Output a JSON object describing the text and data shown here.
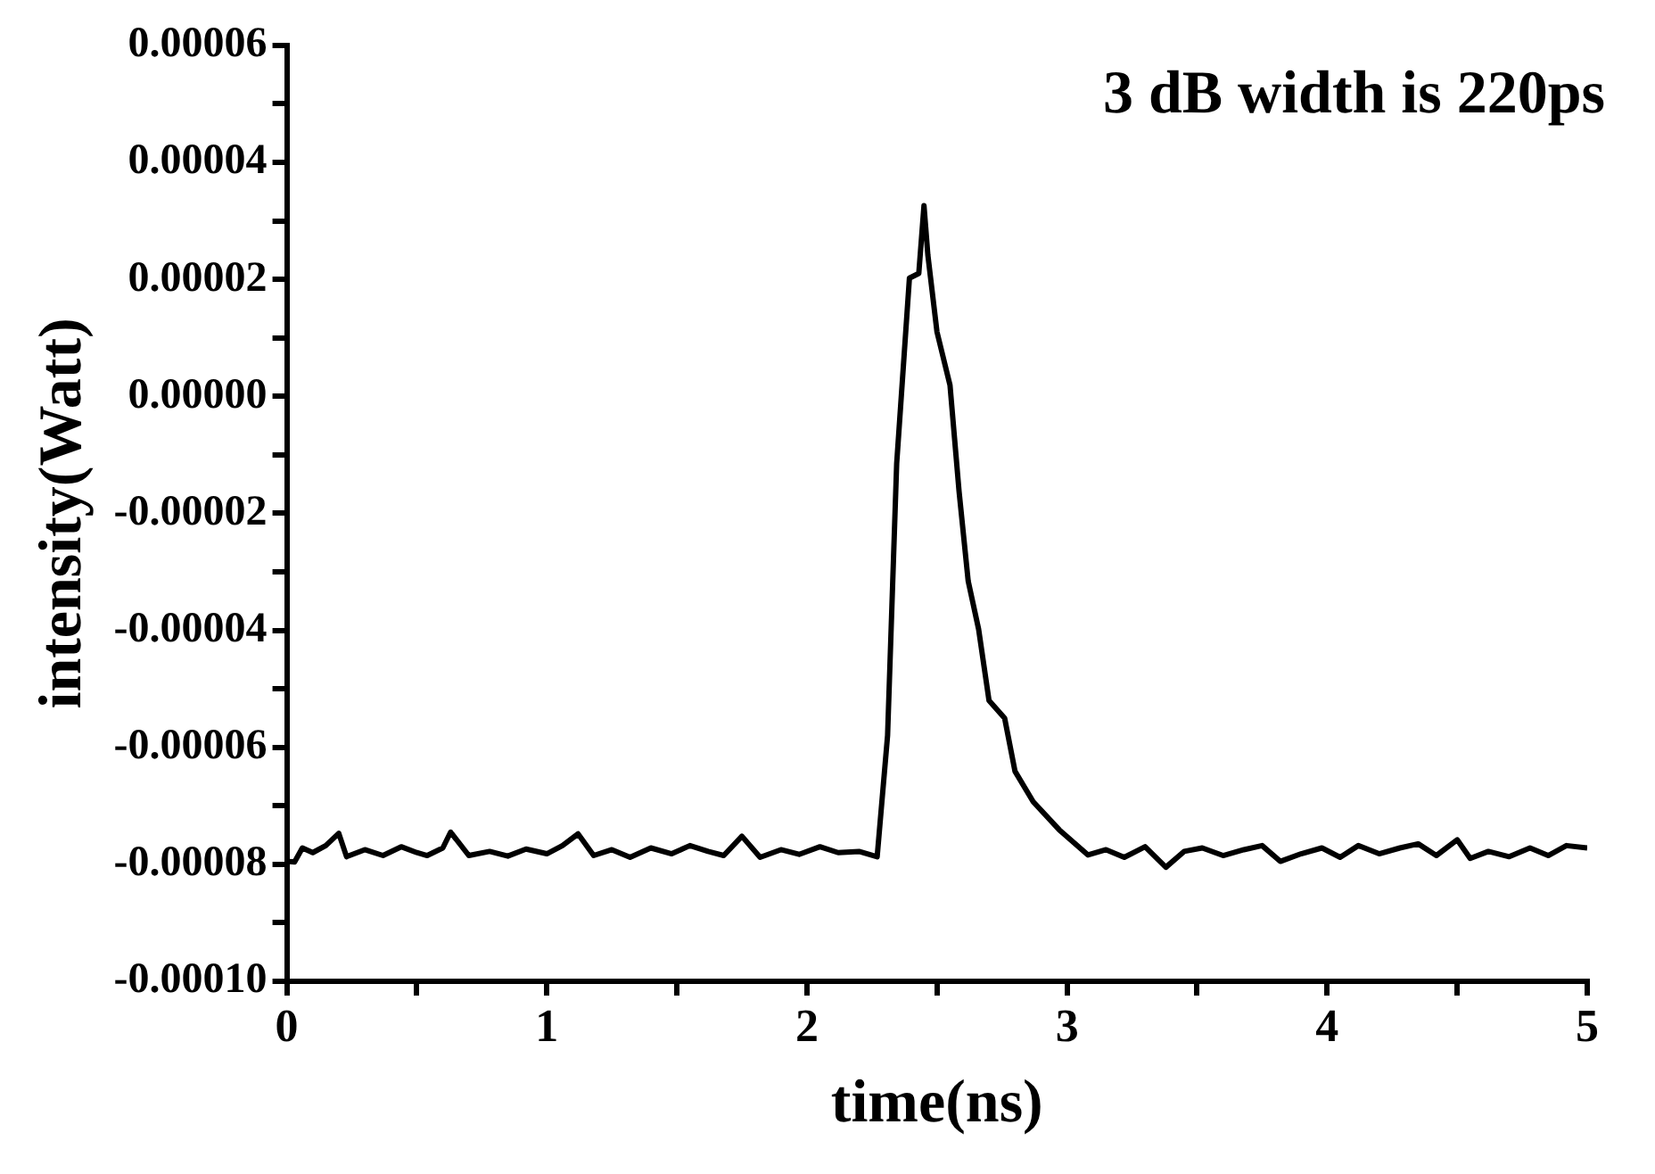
{
  "chart_data": {
    "type": "line",
    "xlabel": "time(ns)",
    "ylabel": "intensity(Watt)",
    "annotations": [
      "3 dB width is 220ps"
    ],
    "xlim": [
      0,
      5
    ],
    "ylim": [
      -0.0001,
      6e-05
    ],
    "xticks": [
      0,
      {
        "value": 0.5,
        "label": null
      },
      1,
      {
        "value": 1.5,
        "label": null
      },
      2,
      {
        "value": 2.5,
        "label": null
      },
      3,
      {
        "value": 3.5,
        "label": null
      },
      4,
      {
        "value": 4.5,
        "label": null
      },
      5
    ],
    "yticks": [
      {
        "value": -0.0001,
        "label": "-0.00010"
      },
      {
        "value": -9e-05,
        "label": null
      },
      {
        "value": -8e-05,
        "label": "-0.00008"
      },
      {
        "value": -7e-05,
        "label": null
      },
      {
        "value": -6e-05,
        "label": "-0.00006"
      },
      {
        "value": -5e-05,
        "label": null
      },
      {
        "value": -4e-05,
        "label": "-0.00004"
      },
      {
        "value": -3e-05,
        "label": null
      },
      {
        "value": -2e-05,
        "label": "-0.00002"
      },
      {
        "value": -1e-05,
        "label": null
      },
      {
        "value": 0,
        "label": "0.00000"
      },
      {
        "value": 1e-05,
        "label": null
      },
      {
        "value": 2e-05,
        "label": "0.00002"
      },
      {
        "value": 3e-05,
        "label": null
      },
      {
        "value": 4e-05,
        "label": "0.00004"
      },
      {
        "value": 5e-05,
        "label": null
      },
      {
        "value": 6e-05,
        "label": "0.00006"
      }
    ],
    "grid": false,
    "legend": false,
    "marker": "none",
    "line_style": "solid",
    "series": [
      {
        "color": "#000000",
        "x": [
          0,
          0.03,
          0.06,
          0.1,
          0.15,
          0.2,
          0.23,
          0.3,
          0.37,
          0.44,
          0.5,
          0.54,
          0.6,
          0.63,
          0.7,
          0.78,
          0.85,
          0.92,
          1.0,
          1.06,
          1.12,
          1.18,
          1.25,
          1.32,
          1.4,
          1.48,
          1.55,
          1.62,
          1.68,
          1.75,
          1.82,
          1.9,
          1.97,
          2.05,
          2.12,
          2.2,
          2.27,
          2.31,
          2.345,
          2.394,
          2.43,
          2.45,
          2.465,
          2.5,
          2.55,
          2.585,
          2.62,
          2.66,
          2.7,
          2.76,
          2.8,
          2.87,
          2.97,
          3.08,
          3.15,
          3.22,
          3.3,
          3.38,
          3.45,
          3.52,
          3.6,
          3.68,
          3.75,
          3.82,
          3.9,
          3.98,
          4.05,
          4.12,
          4.2,
          4.28,
          4.35,
          4.42,
          4.5,
          4.55,
          4.62,
          4.7,
          4.78,
          4.85,
          4.92,
          5.0
        ],
        "values": [
          -7.95e-05,
          -7.96e-05,
          -7.72e-05,
          -7.8e-05,
          -7.68e-05,
          -7.47e-05,
          -7.87e-05,
          -7.75e-05,
          -7.85e-05,
          -7.7e-05,
          -7.8e-05,
          -7.85e-05,
          -7.72e-05,
          -7.45e-05,
          -7.85e-05,
          -7.78e-05,
          -7.86e-05,
          -7.74e-05,
          -7.82e-05,
          -7.68e-05,
          -7.48e-05,
          -7.85e-05,
          -7.75e-05,
          -7.88e-05,
          -7.72e-05,
          -7.82e-05,
          -7.68e-05,
          -7.78e-05,
          -7.85e-05,
          -7.52e-05,
          -7.88e-05,
          -7.75e-05,
          -7.83e-05,
          -7.7e-05,
          -7.8e-05,
          -7.78e-05,
          -7.87e-05,
          -5.8e-05,
          -1.15e-05,
          2.02e-05,
          2.1e-05,
          3.26e-05,
          2.41e-05,
          1.1e-05,
          1.9e-06,
          -1.63e-05,
          -3.16e-05,
          -3.98e-05,
          -5.2e-05,
          -5.5e-05,
          -6.41e-05,
          -6.93e-05,
          -7.41e-05,
          -7.84e-05,
          -7.75e-05,
          -7.88e-05,
          -7.7e-05,
          -8.05e-05,
          -7.78e-05,
          -7.72e-05,
          -7.85e-05,
          -7.75e-05,
          -7.68e-05,
          -7.95e-05,
          -7.82e-05,
          -7.72e-05,
          -7.88e-05,
          -7.68e-05,
          -7.82e-05,
          -7.72e-05,
          -7.65e-05,
          -7.85e-05,
          -7.58e-05,
          -7.9e-05,
          -7.78e-05,
          -7.87e-05,
          -7.72e-05,
          -7.85e-05,
          -7.68e-05,
          -7.72e-05
        ]
      }
    ]
  }
}
